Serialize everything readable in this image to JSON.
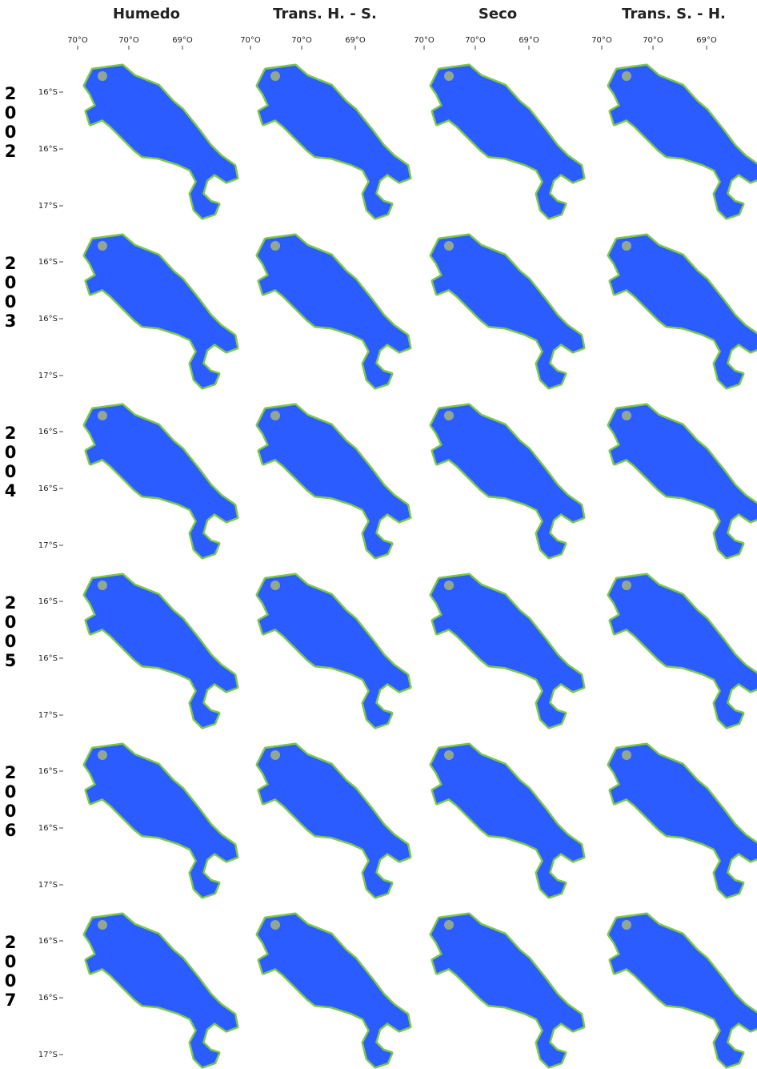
{
  "columns": [
    {
      "title": "Humedo",
      "x_labels": [
        "70°O",
        "70°O",
        "69°O"
      ]
    },
    {
      "title": "Trans. H. - S.",
      "x_labels": [
        "70°O",
        "70°O",
        "69°O"
      ]
    },
    {
      "title": "Seco",
      "x_labels": [
        "70°O",
        "70°O",
        "69°O"
      ]
    },
    {
      "title": "Trans. S. - H.",
      "x_labels": [
        "70°O",
        "70°O",
        "69°O"
      ]
    }
  ],
  "rows": [
    {
      "year": "2002",
      "y_labels": [
        "16°S",
        "16°S",
        "17°S"
      ]
    },
    {
      "year": "2003",
      "y_labels": [
        "16°S",
        "16°S",
        "17°S"
      ]
    },
    {
      "year": "2004",
      "y_labels": [
        "16°S",
        "16°S",
        "17°S"
      ]
    },
    {
      "year": "2005",
      "y_labels": [
        "16°S",
        "16°S",
        "17°S"
      ]
    },
    {
      "year": "2006",
      "y_labels": [
        "16°S",
        "16°S",
        "17°S"
      ]
    },
    {
      "year": "2007",
      "y_labels": [
        "16°S",
        "16°S",
        "17°S"
      ]
    }
  ]
}
